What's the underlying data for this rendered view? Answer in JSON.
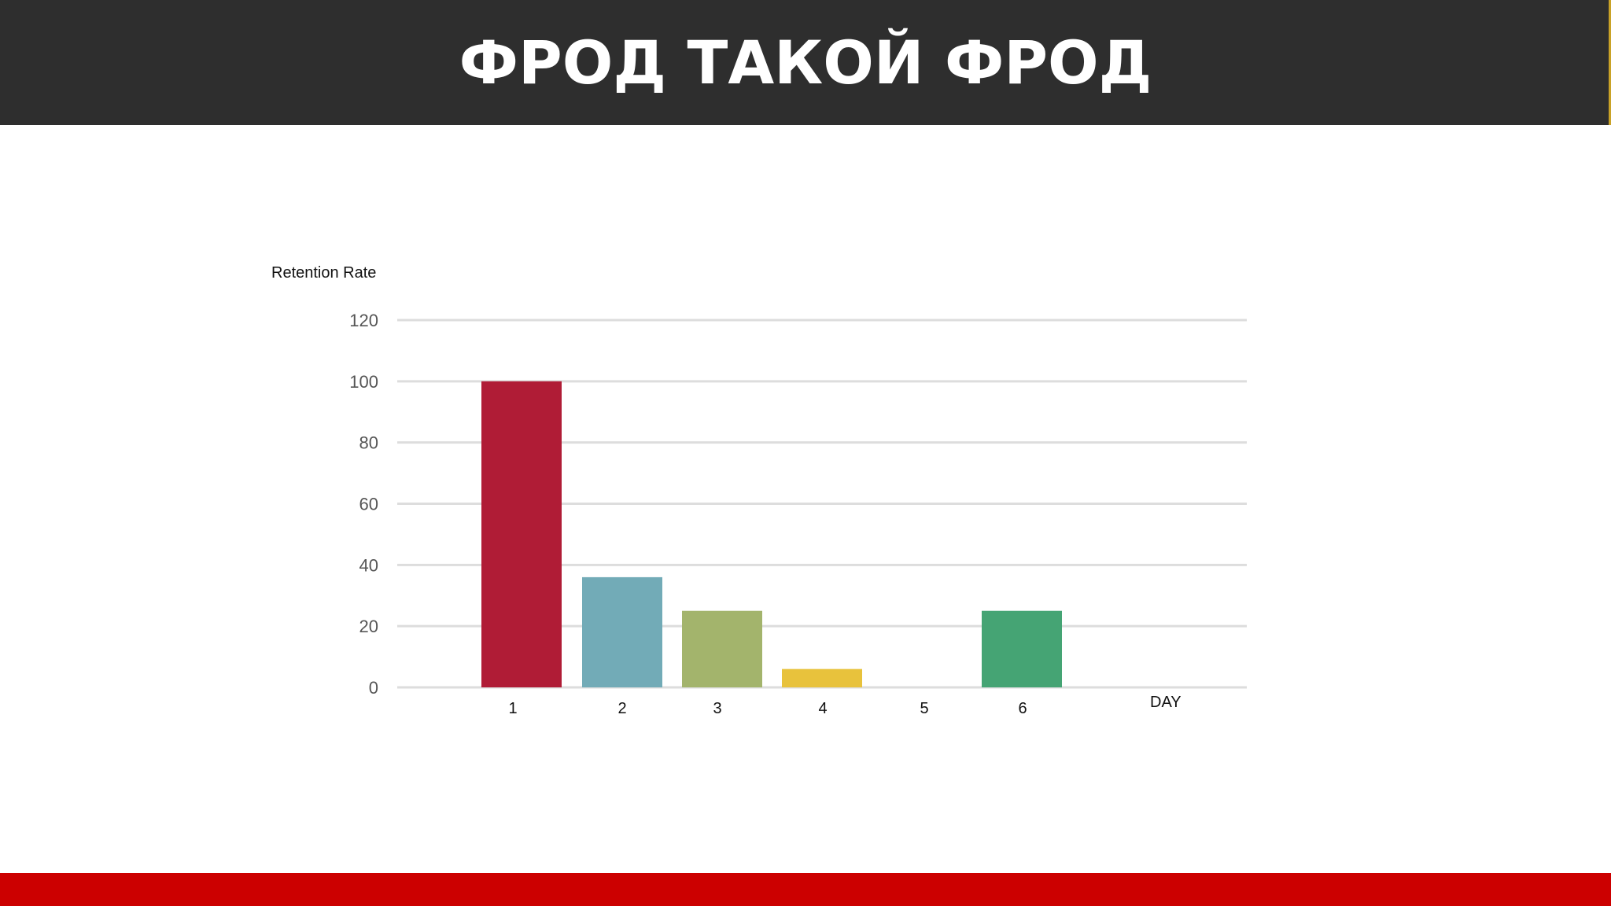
{
  "slide": {
    "title": "ФРОД ТАКОЙ ФРОД"
  },
  "colors": {
    "header_bg": "#2e2e2e",
    "footer_bg": "#cc0000",
    "gridline": "#dddddd",
    "tick_text": "#555555"
  },
  "chart_data": {
    "type": "bar",
    "title": "",
    "xlabel": "DAY",
    "ylabel": "Retention Rate",
    "ylim": [
      0,
      120
    ],
    "yticks": [
      0,
      20,
      40,
      60,
      80,
      100,
      120
    ],
    "grid": true,
    "categories": [
      "1",
      "2",
      "3",
      "4",
      "5",
      "6"
    ],
    "values": [
      100,
      36,
      25,
      6,
      0,
      25
    ],
    "bar_colors": [
      "#b01c36",
      "#72abb7",
      "#a3b46c",
      "#e8c23c",
      "#cccccc",
      "#45a474"
    ]
  }
}
